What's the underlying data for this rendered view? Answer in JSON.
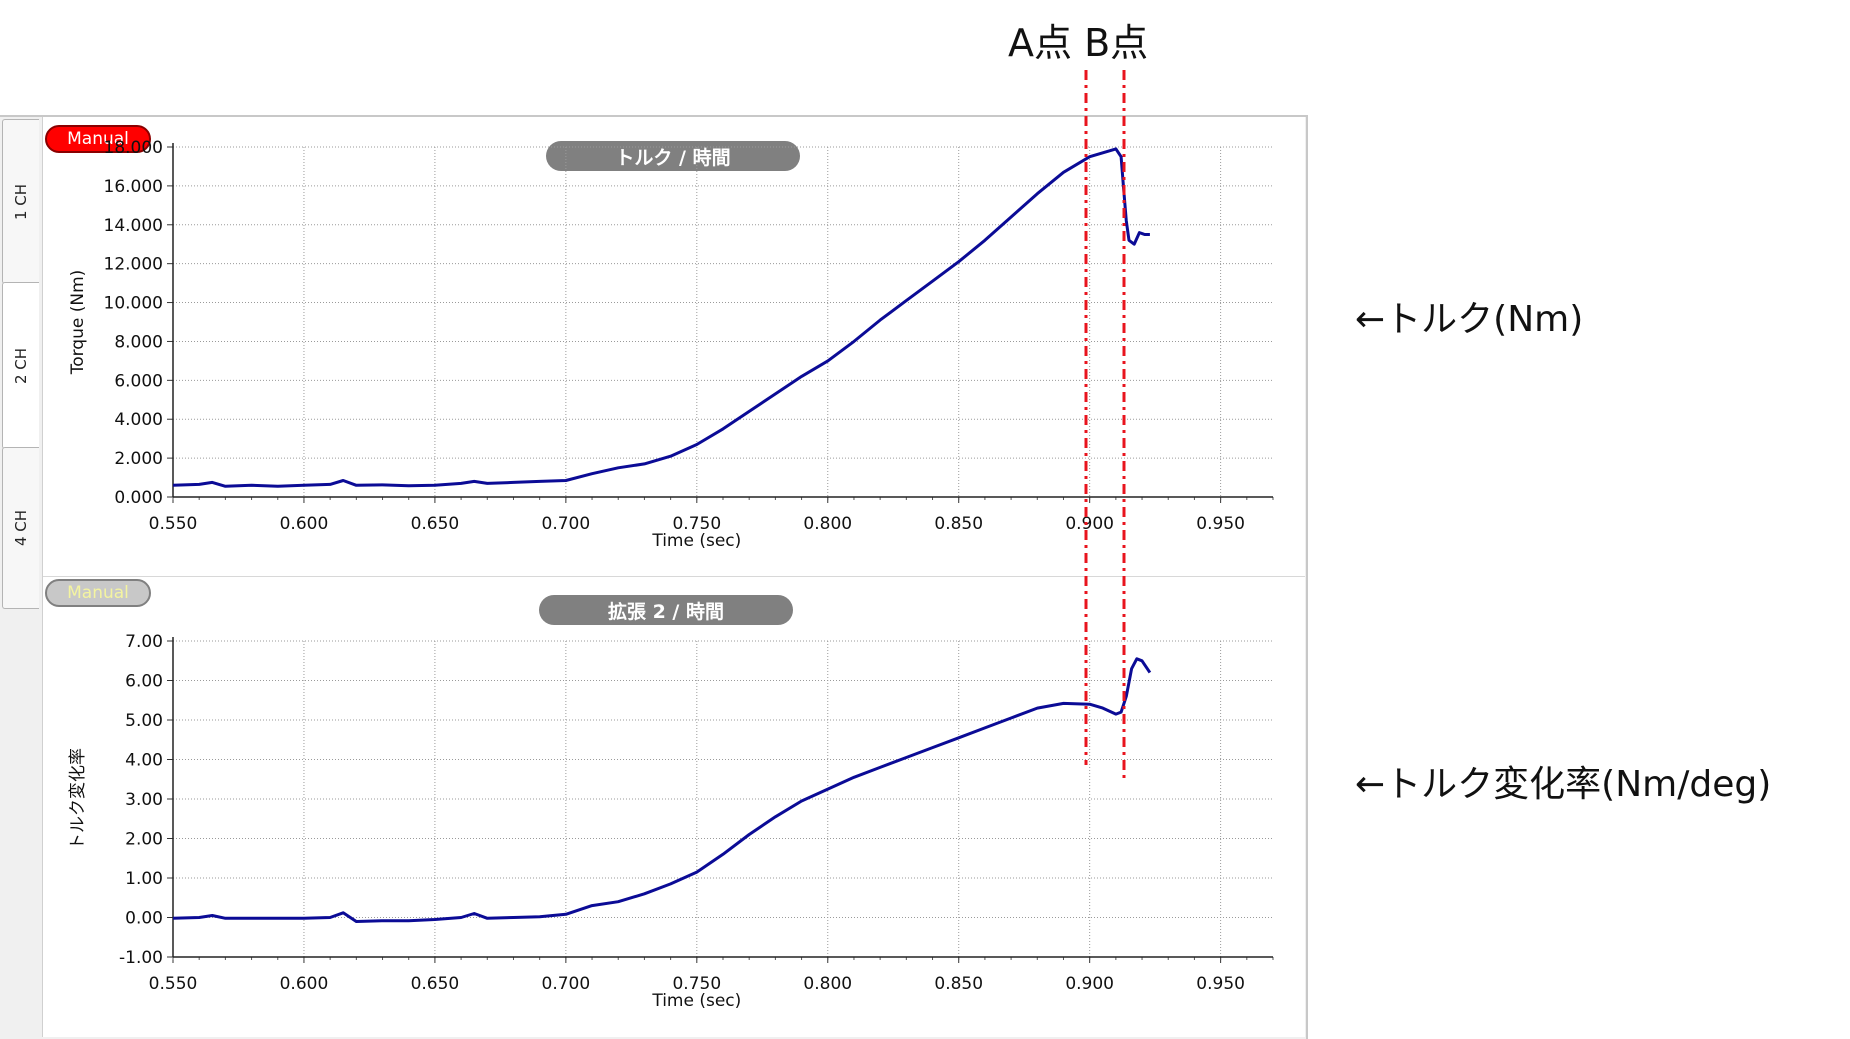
{
  "annotations": {
    "point_labels": "A点 B点",
    "right_label_torque": "←トルク(Nm)",
    "right_label_rate": "←トルク変化率(Nm/deg)"
  },
  "tabs": [
    {
      "label": "1 CH"
    },
    {
      "label": "2 CH"
    },
    {
      "label": "4 CH"
    }
  ],
  "badges": {
    "top": "Manual",
    "bottom": "Manual"
  },
  "colors": {
    "series": "#0b0b96",
    "marker_lines": "#e8141e",
    "grid": "#9a9a9a",
    "badge_active": "#ff0000"
  },
  "chart_data": [
    {
      "type": "line",
      "title": "トルク / 時間",
      "xlabel": "Time (sec)",
      "ylabel": "Torque (Nm)",
      "xlim": [
        0.55,
        0.97
      ],
      "ylim": [
        0,
        18
      ],
      "xticks": [
        "0.550",
        "0.600",
        "0.650",
        "0.700",
        "0.750",
        "0.800",
        "0.850",
        "0.900",
        "0.950"
      ],
      "yticks": [
        "0.000",
        "2.000",
        "4.000",
        "6.000",
        "8.000",
        "10.000",
        "12.000",
        "14.000",
        "16.000",
        "18.000"
      ],
      "grid": true,
      "series": [
        {
          "x": [
            0.55,
            0.56,
            0.565,
            0.57,
            0.58,
            0.59,
            0.6,
            0.61,
            0.615,
            0.62,
            0.63,
            0.64,
            0.65,
            0.66,
            0.665,
            0.67,
            0.68,
            0.69,
            0.7,
            0.71,
            0.72,
            0.73,
            0.74,
            0.75,
            0.76,
            0.77,
            0.78,
            0.79,
            0.8,
            0.81,
            0.82,
            0.83,
            0.84,
            0.85,
            0.86,
            0.87,
            0.88,
            0.89,
            0.9,
            0.905,
            0.91,
            0.912,
            0.913,
            0.914,
            0.915,
            0.917,
            0.919,
            0.921,
            0.923
          ],
          "y": [
            0.6,
            0.65,
            0.75,
            0.55,
            0.6,
            0.55,
            0.6,
            0.65,
            0.85,
            0.6,
            0.62,
            0.58,
            0.6,
            0.7,
            0.8,
            0.7,
            0.75,
            0.8,
            0.85,
            1.2,
            1.5,
            1.7,
            2.1,
            2.7,
            3.5,
            4.4,
            5.3,
            6.2,
            7.0,
            8.0,
            9.1,
            10.1,
            11.1,
            12.1,
            13.2,
            14.4,
            15.6,
            16.7,
            17.5,
            17.7,
            17.9,
            17.5,
            15.8,
            14.2,
            13.2,
            13.0,
            13.6,
            13.5,
            13.5
          ]
        }
      ]
    },
    {
      "type": "line",
      "title": "拡張 2 / 時間",
      "xlabel": "Time (sec)",
      "ylabel": "トルク変化率",
      "xlim": [
        0.55,
        0.97
      ],
      "ylim": [
        -1,
        7
      ],
      "xticks": [
        "0.550",
        "0.600",
        "0.650",
        "0.700",
        "0.750",
        "0.800",
        "0.850",
        "0.900",
        "0.950"
      ],
      "yticks": [
        "-1.00",
        "0.00",
        "1.00",
        "2.00",
        "3.00",
        "4.00",
        "5.00",
        "6.00",
        "7.00"
      ],
      "grid": true,
      "series": [
        {
          "x": [
            0.55,
            0.56,
            0.565,
            0.57,
            0.58,
            0.59,
            0.6,
            0.61,
            0.615,
            0.62,
            0.63,
            0.64,
            0.65,
            0.66,
            0.665,
            0.67,
            0.68,
            0.69,
            0.7,
            0.71,
            0.72,
            0.73,
            0.74,
            0.75,
            0.76,
            0.77,
            0.78,
            0.79,
            0.8,
            0.81,
            0.82,
            0.83,
            0.84,
            0.85,
            0.86,
            0.87,
            0.88,
            0.89,
            0.9,
            0.905,
            0.91,
            0.912,
            0.914,
            0.916,
            0.918,
            0.92,
            0.922,
            0.923
          ],
          "y": [
            -0.02,
            0.0,
            0.05,
            -0.02,
            -0.02,
            -0.02,
            -0.02,
            0.0,
            0.12,
            -0.1,
            -0.08,
            -0.08,
            -0.05,
            0.0,
            0.1,
            -0.02,
            0.0,
            0.02,
            0.08,
            0.3,
            0.4,
            0.6,
            0.85,
            1.15,
            1.6,
            2.1,
            2.55,
            2.95,
            3.25,
            3.55,
            3.8,
            4.05,
            4.3,
            4.55,
            4.8,
            5.05,
            5.3,
            5.42,
            5.4,
            5.3,
            5.15,
            5.2,
            5.6,
            6.3,
            6.55,
            6.5,
            6.3,
            6.2
          ]
        }
      ]
    }
  ]
}
